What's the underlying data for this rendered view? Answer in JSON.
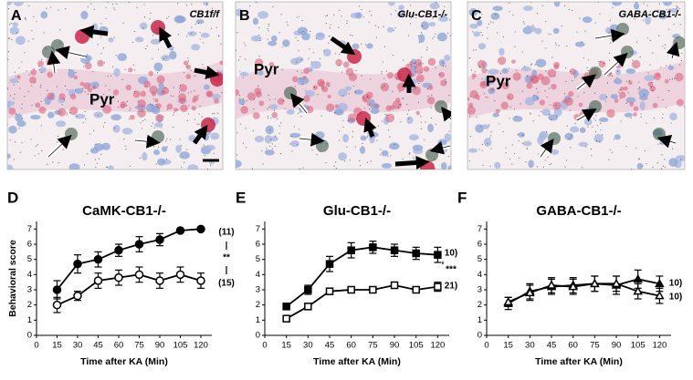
{
  "panels": [
    {
      "letter": "A",
      "genotype": "CB1f/f",
      "region": "Pyr"
    },
    {
      "letter": "B",
      "genotype": "Glu-CB1-/-",
      "region": "Pyr"
    },
    {
      "letter": "C",
      "genotype": "GABA-CB1-/-",
      "region": "Pyr"
    }
  ],
  "chart_data": [
    {
      "type": "line",
      "panel": "D",
      "title": "CaMK-CB1-/-",
      "xlabel": "Time after KA (Min)",
      "ylabel": "Behavioral score",
      "x": [
        15,
        30,
        45,
        60,
        75,
        90,
        105,
        120
      ],
      "xlim": [
        0,
        128
      ],
      "xticks": [
        0,
        15,
        30,
        45,
        60,
        75,
        90,
        105,
        120
      ],
      "ylim": [
        0,
        7.5
      ],
      "yticks": [
        0,
        1,
        2,
        3,
        4,
        5,
        6,
        7
      ],
      "series": [
        {
          "marker": "circle",
          "color": "#000000",
          "filled": true,
          "values": [
            3.0,
            4.7,
            5.0,
            5.6,
            6.0,
            6.3,
            6.9,
            7.0
          ],
          "errors": [
            0.6,
            0.6,
            0.5,
            0.4,
            0.5,
            0.4,
            0.1,
            0.1
          ]
        },
        {
          "marker": "circle",
          "color": "#000000",
          "filled": false,
          "values": [
            2.0,
            2.6,
            3.6,
            3.8,
            4.0,
            3.6,
            4.0,
            3.6
          ],
          "errors": [
            0.5,
            0.3,
            0.5,
            0.5,
            0.5,
            0.5,
            0.5,
            0.5
          ]
        }
      ],
      "annotations": [
        "(11)",
        "**",
        "(15)"
      ]
    },
    {
      "type": "line",
      "panel": "E",
      "title": "Glu-CB1-/-",
      "xlabel": "Time after KA (Min)",
      "x": [
        15,
        30,
        45,
        60,
        75,
        90,
        105,
        120
      ],
      "xlim": [
        0,
        128
      ],
      "xticks": [
        0,
        15,
        30,
        45,
        60,
        75,
        90,
        105,
        120
      ],
      "ylim": [
        0,
        7.5
      ],
      "yticks": [
        0,
        1,
        2,
        3,
        4,
        5,
        6,
        7
      ],
      "series": [
        {
          "marker": "square",
          "color": "#000000",
          "filled": true,
          "values": [
            1.9,
            3.0,
            4.7,
            5.6,
            5.8,
            5.6,
            5.4,
            5.3
          ],
          "errors": [
            0.2,
            0.3,
            0.5,
            0.5,
            0.4,
            0.4,
            0.4,
            0.5
          ]
        },
        {
          "marker": "square",
          "color": "#000000",
          "filled": false,
          "values": [
            1.1,
            1.9,
            2.9,
            3.0,
            3.0,
            3.3,
            3.0,
            3.2
          ],
          "errors": [
            0.1,
            0.1,
            0.2,
            0.2,
            0.2,
            0.2,
            0.2,
            0.3
          ]
        }
      ],
      "annotations": [
        "10)",
        "***",
        "21)"
      ]
    },
    {
      "type": "line",
      "panel": "F",
      "title": "GABA-CB1-/-",
      "xlabel": "Time after KA (Min)",
      "x": [
        15,
        30,
        45,
        60,
        75,
        90,
        105,
        120
      ],
      "xlim": [
        0,
        128
      ],
      "xticks": [
        0,
        15,
        30,
        45,
        60,
        75,
        90,
        105,
        120
      ],
      "ylim": [
        0,
        7.5
      ],
      "yticks": [
        0,
        1,
        2,
        3,
        4,
        5,
        6,
        7
      ],
      "series": [
        {
          "marker": "triangle",
          "color": "#000000",
          "filled": true,
          "values": [
            2.1,
            2.9,
            3.2,
            3.3,
            3.4,
            3.3,
            3.7,
            3.4
          ],
          "errors": [
            0.4,
            0.5,
            0.5,
            0.5,
            0.5,
            0.6,
            0.6,
            0.5
          ]
        },
        {
          "marker": "triangle",
          "color": "#000000",
          "filled": false,
          "values": [
            2.2,
            2.8,
            3.3,
            3.2,
            3.4,
            3.4,
            2.9,
            2.6
          ],
          "errors": [
            0.3,
            0.5,
            0.5,
            0.5,
            0.5,
            0.5,
            0.5,
            0.5
          ]
        }
      ],
      "annotations": [
        "10)",
        "10)"
      ]
    }
  ]
}
